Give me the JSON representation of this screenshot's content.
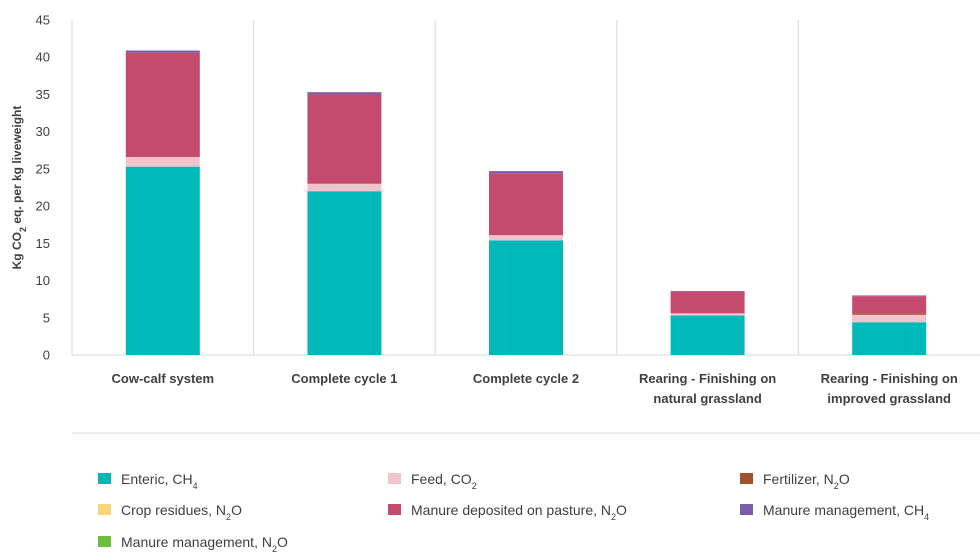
{
  "chart_data": {
    "type": "bar",
    "stacked": true,
    "ylabel": "Kg CO2 eq. per kg liveweight",
    "ylim": [
      0,
      45
    ],
    "yticks": [
      0,
      5,
      10,
      15,
      20,
      25,
      30,
      35,
      40,
      45
    ],
    "grid": "vertical separators between categories",
    "legend_position": "bottom",
    "categories": [
      [
        "Cow-calf system"
      ],
      [
        "Complete cycle 1"
      ],
      [
        "Complete cycle 2"
      ],
      [
        "Rearing - Finishing  on",
        "natural grassland"
      ],
      [
        "Rearing - Finishing  on",
        "improved grassland"
      ]
    ],
    "series": [
      {
        "name": "Enteric, CH4",
        "color": "#00b8b8",
        "values": [
          25.3,
          22.0,
          15.4,
          5.3,
          4.4
        ]
      },
      {
        "name": "Feed, CO2",
        "color": "#f2c4cc",
        "values": [
          1.3,
          1.0,
          0.7,
          0.3,
          1.0
        ]
      },
      {
        "name": "Fertilizer, N2O",
        "color": "#a0522d",
        "values": [
          0,
          0,
          0,
          0,
          0.2
        ]
      },
      {
        "name": "Crop residues, N2O",
        "color": "#f9d47a",
        "values": [
          0,
          0,
          0,
          0,
          0
        ]
      },
      {
        "name": "Manure deposited on pasture, N2O",
        "color": "#c44a6e",
        "values": [
          14.0,
          12.0,
          8.3,
          2.9,
          2.3
        ]
      },
      {
        "name": "Manure management, CH4",
        "color": "#7a5ca8",
        "values": [
          0.3,
          0.3,
          0.3,
          0.1,
          0.1
        ]
      },
      {
        "name": "Manure management, N2O",
        "color": "#6cbf3c",
        "values": [
          0,
          0,
          0,
          0,
          0
        ]
      }
    ]
  }
}
